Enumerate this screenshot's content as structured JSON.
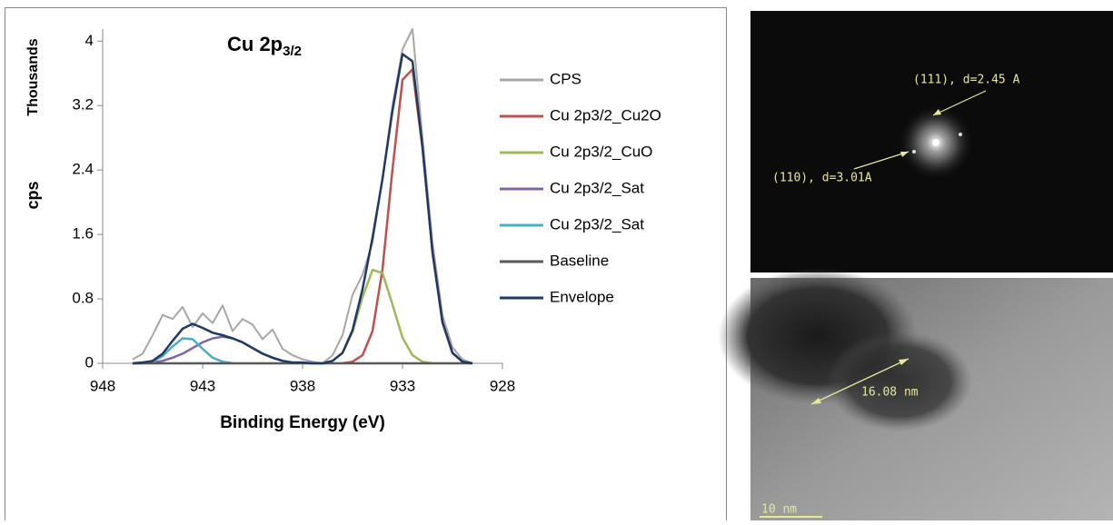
{
  "chart_data": {
    "type": "line",
    "title": "Cu 2p",
    "title_sub": "3/2",
    "xlabel": "Binding Energy (eV)",
    "ylabel": "cps",
    "y_multiplier": "Thousands",
    "x": [
      946.5,
      946,
      945.5,
      945,
      944.5,
      944,
      943.5,
      943,
      942.5,
      942,
      941.5,
      941,
      940.5,
      940,
      939.5,
      939,
      938.5,
      938,
      937.5,
      937,
      936.5,
      936,
      935.5,
      935,
      934.5,
      934,
      933.5,
      933,
      932.5,
      932,
      931.5,
      931,
      930.5,
      930,
      929.5
    ],
    "series": [
      {
        "name": "CPS",
        "color": "#a6a6a6",
        "values": [
          0.05,
          0.12,
          0.35,
          0.6,
          0.55,
          0.7,
          0.45,
          0.62,
          0.5,
          0.72,
          0.4,
          0.55,
          0.48,
          0.3,
          0.42,
          0.18,
          0.1,
          0.05,
          0.02,
          0.0,
          0.1,
          0.35,
          0.85,
          1.1,
          1.5,
          2.3,
          3.2,
          3.9,
          4.15,
          2.8,
          1.5,
          0.6,
          0.2,
          0.05,
          0.0
        ]
      },
      {
        "name": "Cu 2p3/2_Cu2O",
        "color": "#c0504d",
        "values": [
          null,
          null,
          null,
          null,
          null,
          null,
          null,
          null,
          null,
          null,
          null,
          null,
          null,
          null,
          null,
          null,
          null,
          null,
          null,
          null,
          null,
          0.0,
          0.02,
          0.1,
          0.4,
          1.17,
          2.41,
          3.52,
          3.65,
          2.67,
          1.38,
          0.51,
          0.13,
          0.02,
          0.0
        ]
      },
      {
        "name": "Cu 2p3/2_CuO",
        "color": "#9bbb59",
        "values": [
          null,
          null,
          null,
          null,
          null,
          null,
          null,
          null,
          null,
          null,
          null,
          null,
          null,
          null,
          null,
          null,
          null,
          null,
          null,
          0.0,
          0.03,
          0.13,
          0.39,
          0.82,
          1.16,
          1.12,
          0.73,
          0.32,
          0.1,
          0.02,
          0.0,
          null,
          null,
          null,
          null
        ]
      },
      {
        "name": "Cu 2p3/2_Sat",
        "color": "#8064a2",
        "values": [
          0.0,
          0.01,
          0.01,
          0.03,
          0.07,
          0.12,
          0.19,
          0.26,
          0.31,
          0.33,
          0.31,
          0.26,
          0.19,
          0.12,
          0.07,
          0.03,
          0.01,
          0.01,
          0.0,
          null,
          null,
          null,
          null,
          null,
          null,
          null,
          null,
          null,
          null,
          null,
          null,
          null,
          null,
          null,
          null
        ]
      },
      {
        "name": "Cu 2p3/2_Sat",
        "color": "#4bacc6",
        "values": [
          0.0,
          0.0,
          0.02,
          0.09,
          0.21,
          0.31,
          0.3,
          0.18,
          0.07,
          0.02,
          0.0,
          null,
          null,
          null,
          null,
          null,
          null,
          null,
          null,
          null,
          null,
          null,
          null,
          null,
          null,
          null,
          null,
          null,
          null,
          null,
          null,
          null,
          null,
          null,
          null
        ]
      },
      {
        "name": "Baseline",
        "color": "#595959",
        "values": [
          0,
          0,
          0,
          0,
          0,
          0,
          0,
          0,
          0,
          0,
          0,
          0,
          0,
          0,
          0,
          0,
          0,
          0,
          0,
          0,
          0,
          0,
          0,
          0,
          0,
          0,
          0,
          0,
          0,
          0,
          0,
          0,
          0,
          0,
          0
        ]
      },
      {
        "name": "Envelope",
        "color": "#1f3864",
        "values": [
          0.0,
          0.01,
          0.03,
          0.12,
          0.28,
          0.43,
          0.49,
          0.44,
          0.38,
          0.35,
          0.31,
          0.26,
          0.19,
          0.12,
          0.07,
          0.03,
          0.01,
          0.01,
          0.0,
          0.0,
          0.03,
          0.13,
          0.41,
          0.92,
          1.56,
          2.29,
          3.14,
          3.84,
          3.75,
          2.69,
          1.38,
          0.51,
          0.13,
          0.02,
          0.0
        ]
      }
    ],
    "xlim": [
      948,
      928
    ],
    "xticks": [
      948,
      943,
      938,
      933,
      928
    ],
    "ylim": [
      0,
      4.15
    ],
    "yticks": [
      0,
      0.8,
      1.6,
      2.4,
      3.2,
      4
    ],
    "grid": false,
    "legend": "right"
  },
  "fft_image": {
    "label_111": "(111), d=2.45 A",
    "label_110": "(110), d=3.01A"
  },
  "tem_image": {
    "measure": "16.08 nm",
    "scale_bar": "10 nm"
  }
}
